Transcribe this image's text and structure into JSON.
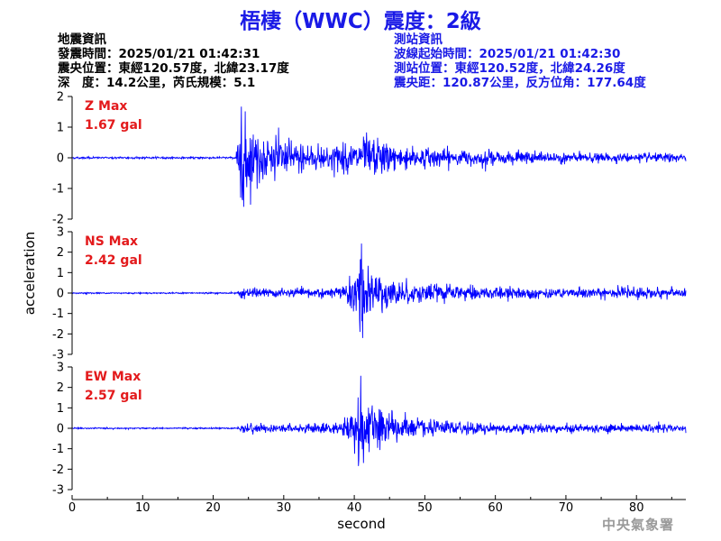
{
  "title": "梧棲（WWC）震度：2級",
  "event_info": {
    "header": "地震資訊",
    "origin_time": "發震時間：2025/01/21 01:42:31",
    "epicenter": "震央位置：東經120.57度，北緯23.17度",
    "depth_magnitude": "深　度：14.2公里，芮氏規模：5.1"
  },
  "station_info": {
    "header": "測站資訊",
    "wave_start": "波線起始時間：2025/01/21 01:42:30",
    "station_location": "測站位置：東經120.52度，北緯24.26度",
    "distance_azimuth": "震央距：120.87公里，反方位角：177.64度"
  },
  "agency": "中央氣象署",
  "chart_data": {
    "type": "line",
    "xlabel": "second",
    "ylabel": "acceleration",
    "xlim": [
      0,
      87
    ],
    "x_ticks": [
      0,
      10,
      20,
      30,
      40,
      50,
      60,
      70,
      80
    ],
    "line_color": "#0000ff",
    "max_label_color": "#e31a1c",
    "panels": [
      {
        "name": "Z",
        "max_label": "Z Max",
        "max_value": "1.67 gal",
        "ylim": [
          -2,
          2
        ],
        "y_ticks": [
          2,
          1,
          0,
          -1,
          -2
        ],
        "noise": 0.04,
        "envelope": [
          [
            0,
            0.03
          ],
          [
            23.2,
            0.03
          ],
          [
            23.6,
            1.3
          ],
          [
            24.5,
            1.5
          ],
          [
            26,
            1.1
          ],
          [
            29,
            0.75
          ],
          [
            33,
            0.55
          ],
          [
            40,
            0.5
          ],
          [
            41.5,
            0.85
          ],
          [
            46,
            0.45
          ],
          [
            55,
            0.32
          ],
          [
            65,
            0.22
          ],
          [
            75,
            0.17
          ],
          [
            87,
            0.14
          ]
        ],
        "peaks": [
          [
            24.0,
            1.67
          ],
          [
            24.3,
            -1.6
          ],
          [
            23.9,
            -1.3
          ]
        ]
      },
      {
        "name": "NS",
        "max_label": "NS Max",
        "max_value": "2.42 gal",
        "ylim": [
          -3,
          3
        ],
        "y_ticks": [
          3,
          2,
          1,
          0,
          -1,
          -2,
          -3
        ],
        "noise": 0.04,
        "envelope": [
          [
            0,
            0.03
          ],
          [
            23.3,
            0.03
          ],
          [
            23.8,
            0.3
          ],
          [
            30,
            0.22
          ],
          [
            38,
            0.35
          ],
          [
            40,
            1.1
          ],
          [
            41,
            1.7
          ],
          [
            43,
            1.2
          ],
          [
            46,
            0.75
          ],
          [
            52,
            0.45
          ],
          [
            60,
            0.35
          ],
          [
            70,
            0.32
          ],
          [
            80,
            0.3
          ],
          [
            87,
            0.3
          ]
        ],
        "peaks": [
          [
            41.0,
            2.42
          ],
          [
            41.2,
            -2.2
          ],
          [
            40.8,
            -1.9
          ]
        ]
      },
      {
        "name": "EW",
        "max_label": "EW Max",
        "max_value": "2.57 gal",
        "ylim": [
          -3,
          3
        ],
        "y_ticks": [
          3,
          2,
          1,
          0,
          -1,
          -2,
          -3
        ],
        "noise": 0.04,
        "envelope": [
          [
            0,
            0.03
          ],
          [
            23.3,
            0.03
          ],
          [
            23.8,
            0.3
          ],
          [
            30,
            0.22
          ],
          [
            38,
            0.35
          ],
          [
            40,
            1.2
          ],
          [
            41,
            1.8
          ],
          [
            43,
            1.3
          ],
          [
            46,
            0.85
          ],
          [
            52,
            0.45
          ],
          [
            60,
            0.3
          ],
          [
            70,
            0.25
          ],
          [
            80,
            0.22
          ],
          [
            87,
            0.22
          ]
        ],
        "peaks": [
          [
            40.9,
            2.57
          ],
          [
            40.6,
            -1.85
          ],
          [
            41.3,
            -1.7
          ]
        ]
      }
    ]
  }
}
